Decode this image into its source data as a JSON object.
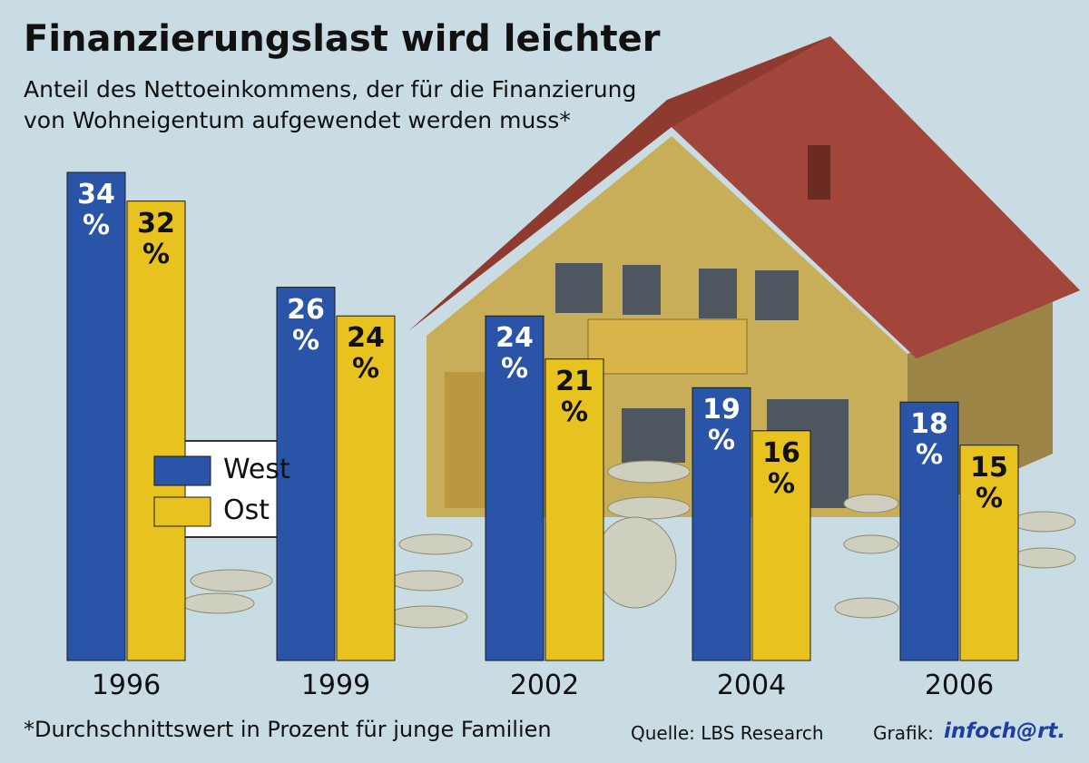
{
  "chart_data": {
    "type": "bar",
    "title": "Finanzierungslast wird leichter",
    "subtitle": [
      "Anteil des Nettoeinkommens, der für die Finanzierung",
      "von Wohneigentum aufgewendet werden muss*"
    ],
    "categories": [
      "1996",
      "1999",
      "2002",
      "2004",
      "2006"
    ],
    "series": [
      {
        "name": "West",
        "color": "#2a54a8",
        "label_color": "#ffffff",
        "values": [
          34,
          26,
          24,
          19,
          18
        ],
        "value_labels": [
          "34 %",
          "26 %",
          "24 %",
          "19 %",
          "18 %"
        ]
      },
      {
        "name": "Ost",
        "color": "#e8c21e",
        "label_color": "#111111",
        "values": [
          32,
          24,
          21,
          16,
          15
        ],
        "value_labels": [
          "32 %",
          "24 %",
          "21 %",
          "16 %",
          "15 %"
        ]
      }
    ],
    "footnote": "*Durchschnittswert in Prozent für junge Familien",
    "source": "Quelle: LBS Research",
    "credit": "Grafik:",
    "brand": "infoch@rt."
  }
}
